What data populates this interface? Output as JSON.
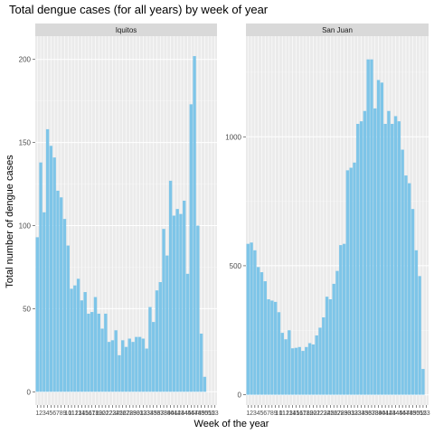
{
  "chart_data": {
    "type": "bar",
    "title": "Total dengue cases (for all years) by week of year",
    "xlabel": "Week of the year",
    "ylabel": "Total number of dengue cases",
    "colors": {
      "bar": "#7ec5e8",
      "panel_background": "#ebebeb",
      "grid_major": "#ffffff",
      "grid_minor": "#f5f5f5",
      "strip_background": "#d9d9d9"
    },
    "grid": true,
    "facets": [
      {
        "name": "Iquitos",
        "ylim": [
          -8,
          214
        ],
        "yticks": [
          0,
          50,
          100,
          150,
          200
        ],
        "x": [
          1,
          2,
          3,
          4,
          5,
          6,
          7,
          8,
          9,
          10,
          11,
          12,
          13,
          14,
          15,
          16,
          17,
          18,
          19,
          20,
          21,
          22,
          23,
          24,
          25,
          26,
          27,
          28,
          29,
          30,
          31,
          32,
          33,
          34,
          35,
          36,
          37,
          38,
          39,
          40,
          41,
          42,
          43,
          44,
          45,
          46,
          47,
          48,
          49,
          50,
          51,
          52,
          53
        ],
        "values": [
          93,
          138,
          108,
          158,
          148,
          141,
          121,
          117,
          104,
          88,
          62,
          64,
          68,
          55,
          60,
          47,
          48,
          57,
          47,
          38,
          47,
          30,
          31,
          37,
          22,
          31,
          27,
          32,
          30,
          33,
          33,
          32,
          26,
          51,
          42,
          61,
          66,
          98,
          82,
          127,
          106,
          110,
          107,
          115,
          71,
          173,
          202,
          100,
          35,
          9,
          0,
          0,
          0
        ],
        "xtick_labels": [
          "1",
          "2",
          "3",
          "4",
          "5",
          "6",
          "7",
          "8",
          "9",
          "10",
          "11",
          "12",
          "13",
          "14",
          "15",
          "16",
          "17",
          "18",
          "19",
          "20",
          "21",
          "22",
          "23",
          "24",
          "25",
          "26",
          "27",
          "28",
          "29",
          "30",
          "31",
          "32",
          "33",
          "34",
          "35",
          "36",
          "37",
          "38",
          "39",
          "40",
          "41",
          "42",
          "43",
          "44",
          "45",
          "46",
          "47",
          "48",
          "49",
          "50",
          "51",
          "52",
          "53"
        ]
      },
      {
        "name": "San Juan",
        "ylim": [
          -40,
          1390
        ],
        "yticks": [
          0,
          500,
          1000
        ],
        "x": [
          1,
          2,
          3,
          4,
          5,
          6,
          7,
          8,
          9,
          10,
          11,
          12,
          13,
          14,
          15,
          16,
          17,
          18,
          19,
          20,
          21,
          22,
          23,
          24,
          25,
          26,
          27,
          28,
          29,
          30,
          31,
          32,
          33,
          34,
          35,
          36,
          37,
          38,
          39,
          40,
          41,
          42,
          43,
          44,
          45,
          46,
          47,
          48,
          49,
          50,
          51,
          52,
          53
        ],
        "values": [
          585,
          590,
          560,
          495,
          475,
          440,
          370,
          365,
          360,
          320,
          240,
          215,
          250,
          180,
          182,
          185,
          170,
          185,
          200,
          195,
          230,
          260,
          300,
          380,
          370,
          430,
          480,
          580,
          585,
          870,
          880,
          900,
          1050,
          1060,
          1100,
          1300,
          1300,
          1110,
          1220,
          1210,
          1050,
          1100,
          1050,
          1080,
          1060,
          950,
          850,
          820,
          720,
          560,
          460,
          100,
          0
        ],
        "xtick_labels": [
          "1",
          "2",
          "3",
          "4",
          "5",
          "6",
          "7",
          "8",
          "9",
          "10",
          "11",
          "12",
          "13",
          "14",
          "15",
          "16",
          "17",
          "18",
          "19",
          "20",
          "21",
          "22",
          "23",
          "24",
          "25",
          "26",
          "27",
          "28",
          "29",
          "30",
          "31",
          "32",
          "33",
          "34",
          "35",
          "36",
          "37",
          "38",
          "39",
          "40",
          "41",
          "42",
          "43",
          "44",
          "45",
          "46",
          "47",
          "48",
          "49",
          "50",
          "51",
          "52",
          "53"
        ]
      }
    ]
  }
}
